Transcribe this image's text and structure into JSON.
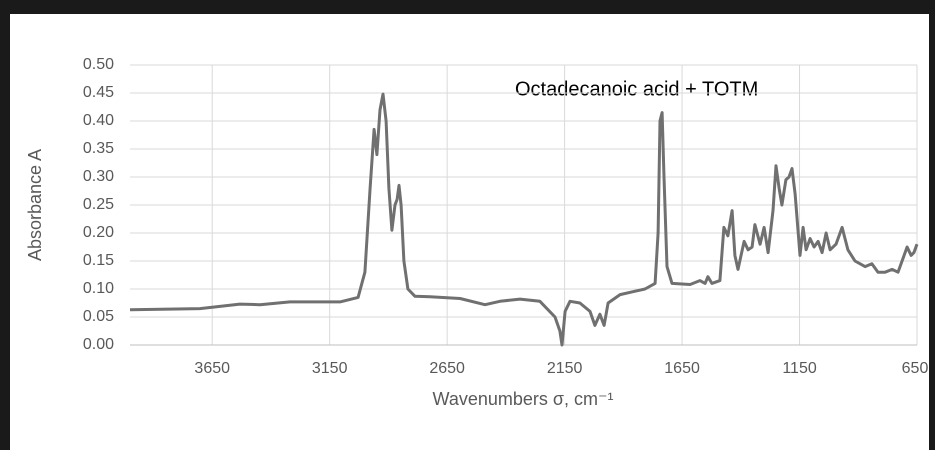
{
  "chart_data": {
    "type": "line",
    "title": "Octadecanoic acid + TOTM",
    "x_label": "Wavenumbers σ, cm⁻¹",
    "y_label": "Absorbance A",
    "xlim": [
      4000,
      650
    ],
    "xticks": [
      3650,
      3150,
      2650,
      2150,
      1650,
      1150,
      650
    ],
    "ylim": [
      0,
      0.5
    ],
    "yticks": [
      {
        "value": 0,
        "label": "0.00"
      },
      {
        "value": 0.05,
        "label": "0.05"
      },
      {
        "value": 0.1,
        "label": "0.10"
      },
      {
        "value": 0.15,
        "label": "0.15"
      },
      {
        "value": 0.2,
        "label": "0.20"
      },
      {
        "value": 0.25,
        "label": "0.25"
      },
      {
        "value": 0.3,
        "label": "0.30"
      },
      {
        "value": 0.35,
        "label": "0.35"
      },
      {
        "value": 0.4,
        "label": "0.40"
      },
      {
        "value": 0.45,
        "label": "0.45"
      },
      {
        "value": 0.5,
        "label": "0.50"
      }
    ],
    "grid": true,
    "x": [
      4000,
      3702,
      3532,
      3447,
      3319,
      3106,
      3029,
      3000,
      2978,
      2961,
      2949,
      2936,
      2923,
      2910,
      2898,
      2885,
      2872,
      2863,
      2855,
      2846,
      2834,
      2817,
      2787,
      2723,
      2595,
      2489,
      2425,
      2340,
      2255,
      2191,
      2170,
      2161,
      2148,
      2127,
      2085,
      2042,
      2021,
      2000,
      1982,
      1965,
      1914,
      1808,
      1765,
      1752,
      1744,
      1735,
      1727,
      1714,
      1693,
      1616,
      1574,
      1552,
      1540,
      1523,
      1489,
      1472,
      1455,
      1437,
      1425,
      1412,
      1386,
      1369,
      1352,
      1340,
      1318,
      1301,
      1284,
      1263,
      1250,
      1237,
      1225,
      1208,
      1195,
      1182,
      1169,
      1148,
      1135,
      1122,
      1105,
      1088,
      1071,
      1054,
      1037,
      1020,
      995,
      969,
      944,
      914,
      871,
      842,
      816,
      786,
      756,
      731,
      705,
      692,
      675,
      663,
      650
    ],
    "series": [
      {
        "color": "#707070",
        "values": [
          0.063,
          0.065,
          0.073,
          0.072,
          0.077,
          0.077,
          0.085,
          0.13,
          0.28,
          0.385,
          0.34,
          0.42,
          0.448,
          0.4,
          0.28,
          0.205,
          0.25,
          0.26,
          0.285,
          0.25,
          0.15,
          0.1,
          0.087,
          0.086,
          0.083,
          0.072,
          0.078,
          0.082,
          0.078,
          0.05,
          0.025,
          0.0,
          0.06,
          0.078,
          0.075,
          0.06,
          0.035,
          0.055,
          0.035,
          0.075,
          0.09,
          0.1,
          0.11,
          0.2,
          0.4,
          0.415,
          0.3,
          0.14,
          0.11,
          0.108,
          0.115,
          0.11,
          0.122,
          0.11,
          0.115,
          0.21,
          0.195,
          0.24,
          0.16,
          0.135,
          0.185,
          0.17,
          0.175,
          0.215,
          0.18,
          0.21,
          0.165,
          0.24,
          0.32,
          0.28,
          0.25,
          0.295,
          0.3,
          0.315,
          0.27,
          0.16,
          0.21,
          0.17,
          0.19,
          0.175,
          0.185,
          0.165,
          0.2,
          0.17,
          0.18,
          0.21,
          0.17,
          0.15,
          0.14,
          0.145,
          0.13,
          0.13,
          0.135,
          0.13,
          0.16,
          0.175,
          0.16,
          0.165,
          0.18
        ]
      }
    ]
  }
}
